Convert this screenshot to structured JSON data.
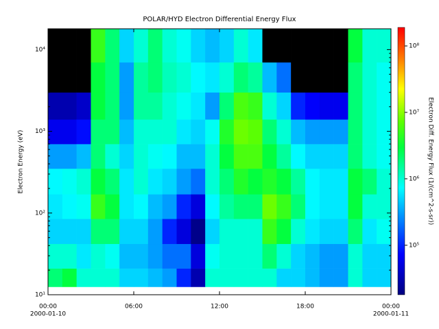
{
  "chart_data": {
    "type": "spectrogram",
    "title": "POLAR/HYD  Electron Differential Energy Flux",
    "y_label": "Electron Energy (eV)",
    "colorbar_label": "Electron Diff. Energy Flux (1/(cm^2-s-sr))",
    "ylog": true,
    "zlog": true,
    "colormap": "rainbow",
    "null_color": "#000000",
    "xlim": [
      0,
      24
    ],
    "xticks": [
      {
        "value": 0,
        "label": "00:00"
      },
      {
        "value": 6,
        "label": "06:00"
      },
      {
        "value": 12,
        "label": "12:00"
      },
      {
        "value": 18,
        "label": "18:00"
      },
      {
        "value": 24,
        "label": "00:00"
      }
    ],
    "x_date_labels": [
      {
        "value": 0,
        "label": "2000-01-10"
      },
      {
        "value": 24,
        "label": "2000-01-11"
      }
    ],
    "ylim": [
      10,
      18000
    ],
    "yticks": [
      {
        "value": 10,
        "label": "10¹"
      },
      {
        "value": 100,
        "label": "10²"
      },
      {
        "value": 1000,
        "label": "10³"
      },
      {
        "value": 10000,
        "label": "10⁴"
      }
    ],
    "zlim": [
      18000,
      190000000
    ],
    "zticks": [
      {
        "value": 100000,
        "label": "10⁵"
      },
      {
        "value": 1000000,
        "label": "10⁶"
      },
      {
        "value": 10000000,
        "label": "10⁷"
      },
      {
        "value": 100000000,
        "label": "10⁸"
      }
    ],
    "time_bins": [
      0,
      1,
      2,
      3,
      4,
      5,
      6,
      7,
      8,
      9,
      10,
      11,
      12,
      13,
      14,
      15,
      16,
      17,
      18,
      19,
      20,
      21,
      22,
      23,
      24
    ],
    "energy_bins": [
      12.5,
      21,
      42,
      85,
      170,
      350,
      700,
      1400,
      3000,
      7000,
      18000
    ],
    "values": [
      [
        2000000.0,
        1000000.0,
        500000.0,
        600000.0,
        700000.0,
        300000.0,
        60000.0,
        30000.0,
        null,
        null
      ],
      [
        3000000.0,
        1000000.0,
        500000.0,
        700000.0,
        800000.0,
        300000.0,
        60000.0,
        30000.0,
        null,
        null
      ],
      [
        1000000.0,
        600000.0,
        500000.0,
        800000.0,
        1000000.0,
        400000.0,
        80000.0,
        40000.0,
        null,
        null
      ],
      [
        1000000.0,
        1000000.0,
        2000000.0,
        5000000.0,
        3000000.0,
        2000000.0,
        2000000.0,
        3000000.0,
        3000000.0,
        5000000.0
      ],
      [
        1000000.0,
        800000.0,
        2000000.0,
        3000000.0,
        2000000.0,
        1000000.0,
        2000000.0,
        2000000.0,
        2000000.0,
        2000000.0
      ],
      [
        500000.0,
        400000.0,
        500000.0,
        600000.0,
        600000.0,
        500000.0,
        400000.0,
        300000.0,
        300000.0,
        500000.0
      ],
      [
        500000.0,
        400000.0,
        500000.0,
        700000.0,
        1000000.0,
        1000000.0,
        1000000.0,
        1500000.0,
        1500000.0,
        1000000.0
      ],
      [
        400000.0,
        300000.0,
        300000.0,
        400000.0,
        600000.0,
        800000.0,
        1000000.0,
        1500000.0,
        2000000.0,
        2000000.0
      ],
      [
        300000.0,
        200000.0,
        100000.0,
        300000.0,
        500000.0,
        700000.0,
        1000000.0,
        1000000.0,
        1200000.0,
        1000000.0
      ],
      [
        100000.0,
        200000.0,
        50000.0,
        100000.0,
        300000.0,
        400000.0,
        600000.0,
        800000.0,
        1000000.0,
        800000.0
      ],
      [
        30000.0,
        50000.0,
        20000.0,
        50000.0,
        200000.0,
        400000.0,
        500000.0,
        600000.0,
        700000.0,
        500000.0
      ],
      [
        1000000.0,
        800000.0,
        500000.0,
        700000.0,
        1000000.0,
        1000000.0,
        800000.0,
        300000.0,
        600000.0,
        400000.0
      ],
      [
        1000000.0,
        1000000.0,
        1000000.0,
        1500000.0,
        2000000.0,
        3000000.0,
        4000000.0,
        2000000.0,
        1000000.0,
        500000.0
      ],
      [
        1000000.0,
        1000000.0,
        1000000.0,
        2000000.0,
        4000000.0,
        6000000.0,
        8000000.0,
        6000000.0,
        2000000.0,
        1000000.0
      ],
      [
        1000000.0,
        1000000.0,
        1000000.0,
        2000000.0,
        3000000.0,
        6000000.0,
        7000000.0,
        5000000.0,
        1500000.0,
        600000.0
      ],
      [
        1000000.0,
        2000000.0,
        5000000.0,
        8000000.0,
        4000000.0,
        3000000.0,
        2000000.0,
        1000000.0,
        400000.0,
        null
      ],
      [
        500000.0,
        1000000.0,
        3000000.0,
        5000000.0,
        3000000.0,
        1500000.0,
        1000000.0,
        500000.0,
        200000.0,
        null
      ],
      [
        500000.0,
        500000.0,
        1000000.0,
        2000000.0,
        1500000.0,
        700000.0,
        400000.0,
        100000.0,
        null,
        null
      ],
      [
        400000.0,
        400000.0,
        600000.0,
        700000.0,
        700000.0,
        500000.0,
        300000.0,
        70000.0,
        null,
        null
      ],
      [
        300000.0,
        300000.0,
        500000.0,
        600000.0,
        600000.0,
        500000.0,
        300000.0,
        60000.0,
        null,
        null
      ],
      [
        300000.0,
        300000.0,
        500000.0,
        600000.0,
        600000.0,
        500000.0,
        300000.0,
        60000.0,
        null,
        null
      ],
      [
        1000000.0,
        1000000.0,
        2000000.0,
        3000000.0,
        3000000.0,
        2000000.0,
        2000000.0,
        2000000.0,
        2000000.0,
        3000000.0
      ],
      [
        500000.0,
        500000.0,
        600000.0,
        1000000.0,
        2000000.0,
        1000000.0,
        1000000.0,
        1000000.0,
        1000000.0,
        1000000.0
      ],
      [
        500000.0,
        500000.0,
        800000.0,
        1000000.0,
        1000000.0,
        800000.0,
        800000.0,
        800000.0,
        800000.0,
        1000000.0
      ]
    ]
  }
}
